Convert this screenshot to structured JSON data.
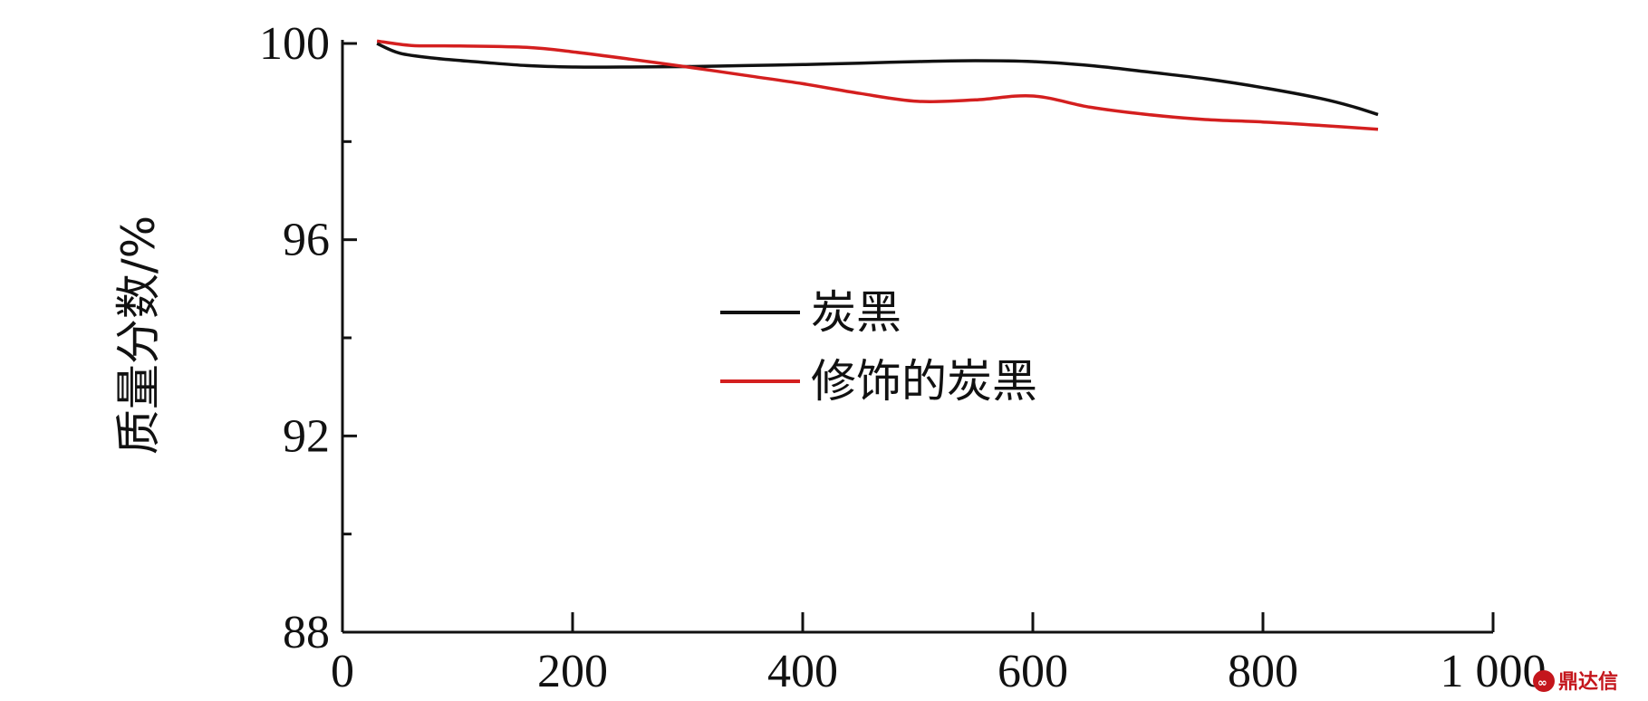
{
  "chart_data": {
    "type": "line",
    "title": "",
    "xlabel": "",
    "ylabel": "质量分数/%",
    "xlim": [
      0,
      1000
    ],
    "ylim": [
      88,
      100
    ],
    "x_ticks": [
      0,
      200,
      400,
      600,
      800,
      1000
    ],
    "x_tick_labels": [
      "0",
      "200",
      "400",
      "600",
      "800",
      "1 000"
    ],
    "y_ticks": [
      88,
      92,
      96,
      100
    ],
    "y_tick_labels": [
      "88",
      "92",
      "96",
      "100"
    ],
    "y_minor_ticks": [
      90,
      94,
      98
    ],
    "grid": false,
    "legend_position": "center",
    "series": [
      {
        "name": "炭黑",
        "color": "#111111",
        "x": [
          30,
          50,
          80,
          120,
          160,
          200,
          250,
          300,
          350,
          400,
          450,
          500,
          550,
          600,
          650,
          700,
          750,
          800,
          850,
          880,
          900
        ],
        "y": [
          100.0,
          99.8,
          99.7,
          99.62,
          99.55,
          99.52,
          99.52,
          99.53,
          99.55,
          99.57,
          99.6,
          99.63,
          99.65,
          99.63,
          99.55,
          99.42,
          99.28,
          99.1,
          98.88,
          98.7,
          98.55
        ]
      },
      {
        "name": "修饰的炭黑",
        "color": "#d41f1f",
        "x": [
          30,
          60,
          100,
          160,
          200,
          250,
          300,
          350,
          400,
          450,
          500,
          550,
          600,
          650,
          700,
          750,
          800,
          850,
          900
        ],
        "y": [
          100.05,
          99.96,
          99.95,
          99.92,
          99.83,
          99.68,
          99.52,
          99.35,
          99.18,
          98.98,
          98.82,
          98.85,
          98.93,
          98.7,
          98.55,
          98.45,
          98.4,
          98.33,
          98.25
        ]
      }
    ]
  },
  "watermark": {
    "text": "鼎达信",
    "color": "#c4161c"
  }
}
